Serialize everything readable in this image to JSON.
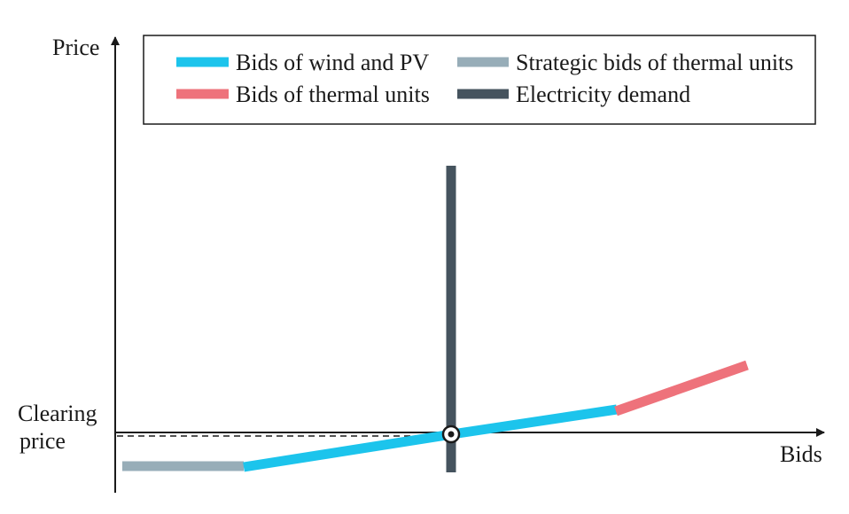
{
  "axes": {
    "y_label": "Price",
    "x_label": "Bids",
    "clearing_label_line1": "Clearing",
    "clearing_label_line2": "price"
  },
  "legend": {
    "position": "top-right",
    "items": [
      {
        "label": "Bids of wind and PV",
        "color": "#1cc4ec"
      },
      {
        "label": "Strategic bids of thermal units",
        "color": "#97adb8"
      },
      {
        "label": "Bids of thermal units",
        "color": "#ee727b"
      },
      {
        "label": "Electricity demand",
        "color": "#45535e"
      }
    ]
  },
  "colors": {
    "axis": "#1a1a1a",
    "wind_pv": "#1cc4ec",
    "strategic_thermal": "#97adb8",
    "thermal": "#ee727b",
    "demand": "#45535e"
  }
}
